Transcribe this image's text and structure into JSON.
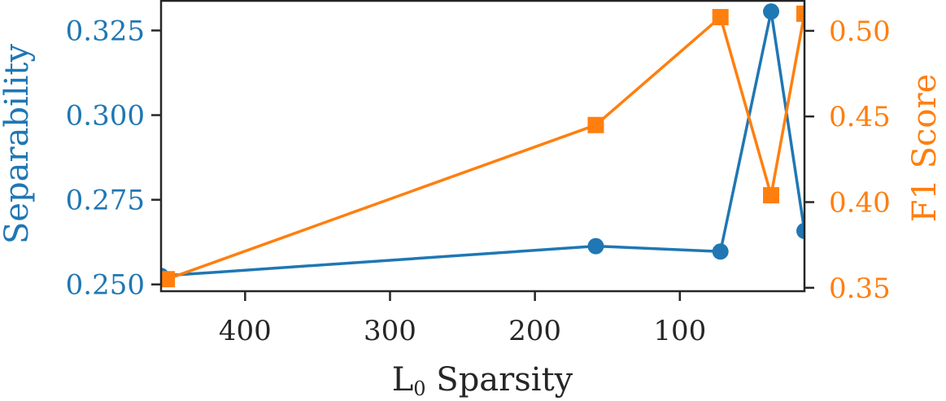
{
  "chart_data": {
    "type": "line",
    "xlabel_main": "L",
    "xlabel_subscript": "0",
    "xlabel_rest": " Sparsity",
    "x_axis_inverted": true,
    "xlim": [
      458,
      14
    ],
    "x_ticks": [
      400,
      300,
      200,
      100
    ],
    "y_left": {
      "label": "Separability",
      "lim": [
        0.248,
        0.334
      ],
      "ticks": [
        0.25,
        0.275,
        0.3,
        0.325
      ],
      "tick_labels": [
        "0.250",
        "0.275",
        "0.300",
        "0.325"
      ],
      "color": "#1f77b4"
    },
    "y_right": {
      "label": "F1 Score",
      "lim": [
        0.348,
        0.518
      ],
      "ticks": [
        0.35,
        0.4,
        0.45,
        0.5
      ],
      "tick_labels": [
        "0.35",
        "0.40",
        "0.45",
        "0.50"
      ],
      "color": "#ff7f0e"
    },
    "grid": false,
    "series": [
      {
        "axis": "left",
        "marker": "circle",
        "color": "#1f77b4",
        "x": [
          458,
          158,
          72,
          37,
          14
        ],
        "values": [
          0.2525,
          0.2613,
          0.2597,
          0.3306,
          0.2658
        ]
      },
      {
        "axis": "right",
        "marker": "square",
        "color": "#ff7f0e",
        "x": [
          454,
          158,
          72,
          37,
          14
        ],
        "values": [
          0.355,
          0.445,
          0.508,
          0.404,
          0.51
        ]
      }
    ]
  }
}
